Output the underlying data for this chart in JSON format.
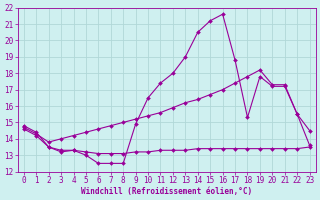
{
  "xlabel": "Windchill (Refroidissement éolien,°C)",
  "background_color": "#cff0f0",
  "grid_color": "#b0d8d8",
  "line_color": "#990099",
  "xlim": [
    -0.5,
    23.5
  ],
  "ylim": [
    12,
    22
  ],
  "xticks": [
    0,
    1,
    2,
    3,
    4,
    5,
    6,
    7,
    8,
    9,
    10,
    11,
    12,
    13,
    14,
    15,
    16,
    17,
    18,
    19,
    20,
    21,
    22,
    23
  ],
  "yticks": [
    12,
    13,
    14,
    15,
    16,
    17,
    18,
    19,
    20,
    21,
    22
  ],
  "line1_y": [
    14.8,
    14.4,
    13.5,
    13.2,
    13.3,
    13.0,
    12.5,
    12.5,
    12.5,
    14.9,
    16.5,
    17.4,
    18.0,
    19.0,
    20.5,
    21.2,
    21.6,
    18.8,
    15.3,
    17.8,
    17.2,
    17.2,
    15.5,
    14.5
  ],
  "line2_y": [
    14.6,
    14.2,
    13.5,
    13.3,
    13.3,
    13.2,
    13.1,
    13.1,
    13.1,
    13.2,
    13.2,
    13.3,
    13.3,
    13.3,
    13.4,
    13.4,
    13.4,
    13.4,
    13.4,
    13.4,
    13.4,
    13.4,
    13.4,
    13.5
  ],
  "line3_y": [
    14.7,
    14.3,
    13.8,
    14.0,
    14.2,
    14.4,
    14.6,
    14.8,
    15.0,
    15.2,
    15.4,
    15.6,
    15.9,
    16.2,
    16.4,
    16.7,
    17.0,
    17.4,
    17.8,
    18.2,
    17.3,
    17.3,
    15.5,
    13.6
  ],
  "markersize": 2.0,
  "linewidth": 0.8,
  "tick_fontsize": 5.5,
  "xlabel_fontsize": 5.5
}
